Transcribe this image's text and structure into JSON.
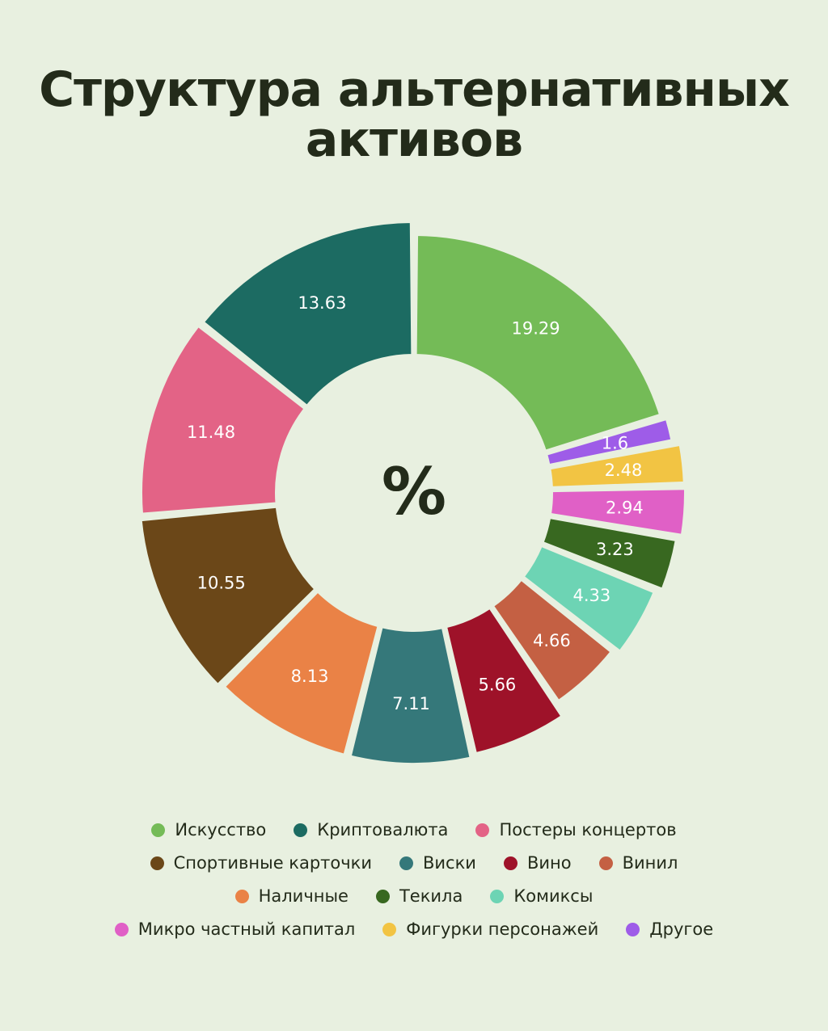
{
  "title_line1": "Структура альтернативных",
  "title_line2": "активов",
  "center_label": "%",
  "chart_data": {
    "type": "pie",
    "title": "Структура альтернативных активов",
    "unit": "%",
    "categories": [
      "Искусство",
      "Другое",
      "Фигурки персонажей",
      "Микро частный капитал",
      "Текила",
      "Комиксы",
      "Винил",
      "Вино",
      "Виски",
      "Наличные",
      "Спортивные карточки",
      "Постеры концертов",
      "Криптовалюта"
    ],
    "values": [
      19.29,
      1.6,
      2.48,
      2.94,
      3.23,
      4.33,
      4.66,
      5.66,
      7.11,
      8.13,
      10.55,
      11.48,
      13.63
    ],
    "labels": [
      "19.29",
      "1.6",
      "2.48",
      "2.94",
      "3.23",
      "4.33",
      "4.66",
      "5.66",
      "7.11",
      "8.13",
      "10.55",
      "11.48",
      "13.63"
    ],
    "colors": [
      "#74bb57",
      "#9e5ce8",
      "#f2c443",
      "#e060c6",
      "#386820",
      "#6dd4b4",
      "#c46043",
      "#9e1229",
      "#35787a",
      "#ea8246",
      "#6b4718",
      "#e36386",
      "#1c6b62"
    ],
    "label_colors": [
      "#ffffff",
      "#ffffff",
      "#ffffff",
      "#ffffff",
      "#ffffff",
      "#ffffff",
      "#ffffff",
      "#ffffff",
      "#ffffff",
      "#ffffff",
      "#ffffff",
      "#ffffff",
      "#ffffff"
    ],
    "hole": "donut",
    "legend_position": "bottom"
  },
  "legend": [
    [
      {
        "label": "Искусство",
        "color": "#74bb57"
      },
      {
        "label": "Криптовалюта",
        "color": "#1c6b62"
      },
      {
        "label": "Постеры концертов",
        "color": "#e36386"
      }
    ],
    [
      {
        "label": "Спортивные карточки",
        "color": "#6b4718"
      },
      {
        "label": "Виски",
        "color": "#35787a"
      },
      {
        "label": "Вино",
        "color": "#9e1229"
      },
      {
        "label": "Винил",
        "color": "#c46043"
      }
    ],
    [
      {
        "label": "Наличные",
        "color": "#ea8246"
      },
      {
        "label": "Текила",
        "color": "#386820"
      },
      {
        "label": "Комиксы",
        "color": "#6dd4b4"
      }
    ],
    [
      {
        "label": "Микро частный капитал",
        "color": "#e060c6"
      },
      {
        "label": "Фигурки персонажей",
        "color": "#f2c443"
      },
      {
        "label": "Другое",
        "color": "#9e5ce8"
      }
    ]
  ]
}
